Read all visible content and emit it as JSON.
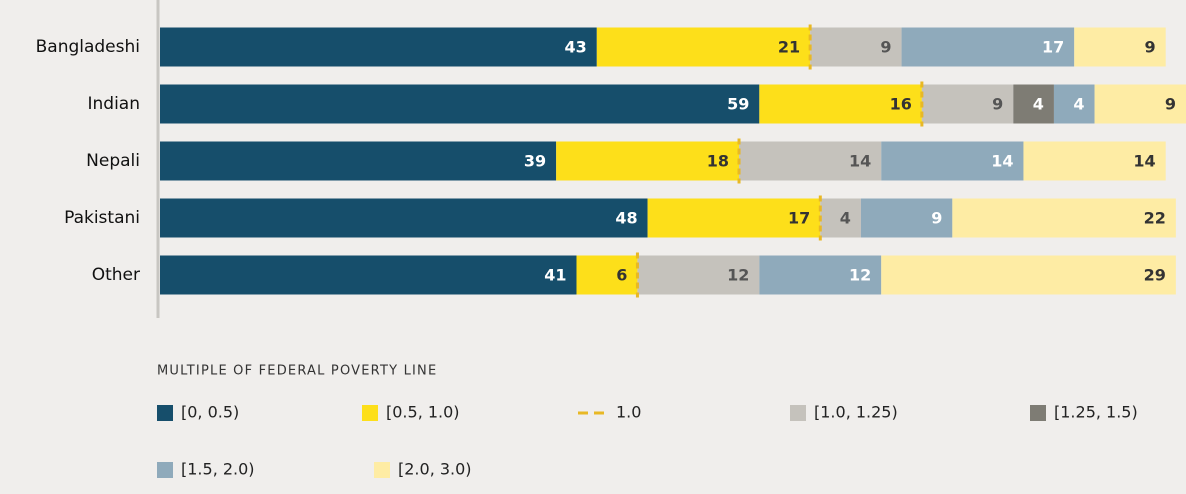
{
  "chart_data": {
    "type": "stacked-bar-horizontal",
    "categories": [
      "Bangladeshi",
      "Indian",
      "Nepali",
      "Pakistani",
      "Other"
    ],
    "series": [
      {
        "name": "[0, 0.5)",
        "color": "#164e6b",
        "values": [
          43,
          59,
          39,
          48,
          41
        ]
      },
      {
        "name": "[0.5, 1.0)",
        "color": "#fddf1a",
        "values": [
          21,
          16,
          18,
          17,
          6
        ]
      },
      {
        "name": "[1.0, 1.25)",
        "color": "#c5c2bc",
        "values": [
          9,
          9,
          14,
          4,
          12
        ]
      },
      {
        "name": "[1.25, 1.5)",
        "color": "#7e7c74",
        "values": [
          null,
          4,
          null,
          null,
          null
        ]
      },
      {
        "name": "[1.5, 2.0)",
        "color": "#8faabb",
        "values": [
          17,
          4,
          14,
          9,
          12
        ]
      },
      {
        "name": "[2.0, 3.0)",
        "color": "#feeca4",
        "values": [
          9,
          9,
          14,
          22,
          29
        ]
      }
    ],
    "reference_line": {
      "name": "1.0",
      "color": "#e8b825"
    },
    "legend_title": "MULTIPLE OF FEDERAL POVERTY LINE"
  }
}
